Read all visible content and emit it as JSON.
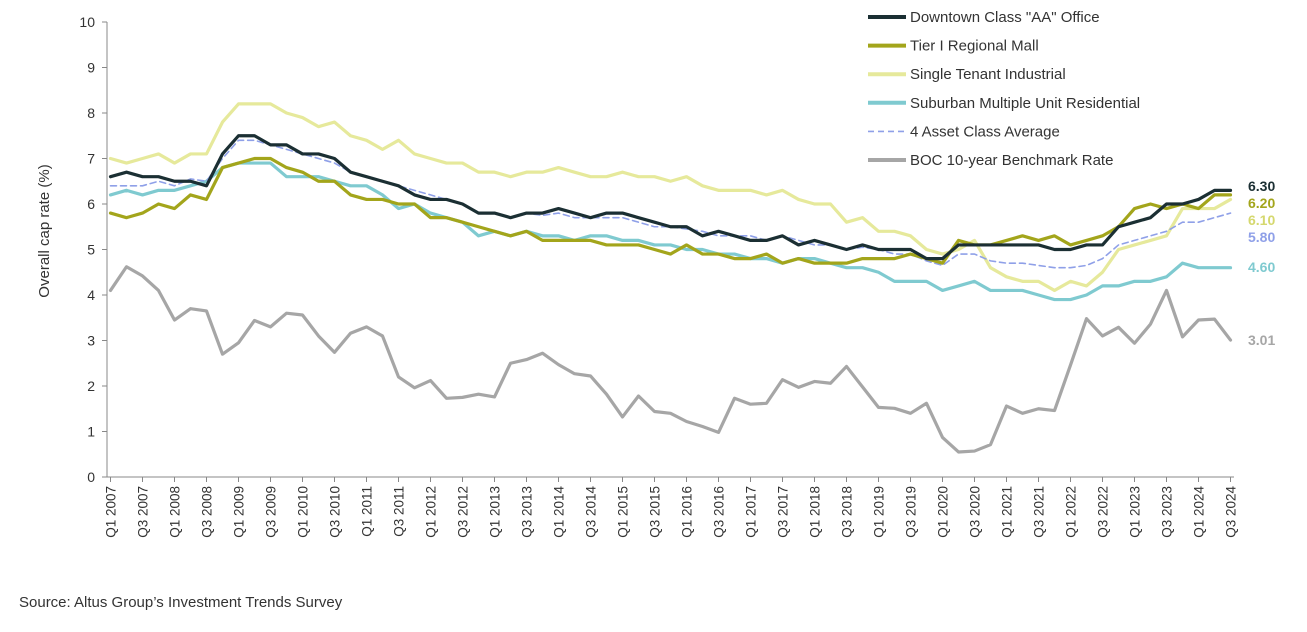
{
  "source_note": "Source:  Altus Group’s Investment Trends Survey",
  "chart_data": {
    "type": "line",
    "title": "",
    "xlabel": "",
    "ylabel": "Overall cap rate (%)",
    "ylim": [
      0,
      10
    ],
    "yticks": [
      "0",
      "1",
      "2",
      "3",
      "4",
      "5",
      "6",
      "7",
      "8",
      "9",
      "10"
    ],
    "x_tick_labels": [
      "Q1 2007",
      "Q3 2007",
      "Q1 2008",
      "Q3 2008",
      "Q1 2009",
      "Q3 2009",
      "Q1 2010",
      "Q3 2010",
      "Q1 2011",
      "Q3 2011",
      "Q1 2012",
      "Q3 2012",
      "Q1 2013",
      "Q3 2013",
      "Q1 2014",
      "Q3 2014",
      "Q1 2015",
      "Q3 2015",
      "Q1 2016",
      "Q3 2016",
      "Q1 2017",
      "Q3 2017",
      "Q1 2018",
      "Q3 2018",
      "Q1 2019",
      "Q3 2019",
      "Q1 2020",
      "Q3 2020",
      "Q1 2021",
      "Q3 2021",
      "Q1 2022",
      "Q3 2022",
      "Q1 2023",
      "Q3 2023",
      "Q1 2024",
      "Q3 2024"
    ],
    "grid": false,
    "legend_position": "top-right",
    "series": [
      {
        "name": "Downtown Class \"AA\" Office",
        "color": "#1b2f33",
        "dash": false,
        "end_label": "6.30",
        "values": [
          6.6,
          6.7,
          6.6,
          6.6,
          6.5,
          6.5,
          6.4,
          7.1,
          7.5,
          7.5,
          7.3,
          7.3,
          7.1,
          7.1,
          7.0,
          6.7,
          6.6,
          6.5,
          6.4,
          6.2,
          6.1,
          6.1,
          6.0,
          5.8,
          5.8,
          5.7,
          5.8,
          5.8,
          5.9,
          5.8,
          5.7,
          5.8,
          5.8,
          5.7,
          5.6,
          5.5,
          5.5,
          5.3,
          5.4,
          5.3,
          5.2,
          5.2,
          5.3,
          5.1,
          5.2,
          5.1,
          5.0,
          5.1,
          5.0,
          5.0,
          5.0,
          4.8,
          4.8,
          5.1,
          5.1,
          5.1,
          5.1,
          5.1,
          5.1,
          5.0,
          5.0,
          5.1,
          5.1,
          5.5,
          5.6,
          5.7,
          6.0,
          6.0,
          6.1,
          6.3,
          6.3
        ]
      },
      {
        "name": "Tier I Regional Mall",
        "color": "#a3a51b",
        "dash": false,
        "end_label": "6.20",
        "values": [
          5.8,
          5.7,
          5.8,
          6.0,
          5.9,
          6.2,
          6.1,
          6.8,
          6.9,
          7.0,
          7.0,
          6.8,
          6.7,
          6.5,
          6.5,
          6.2,
          6.1,
          6.1,
          6.0,
          6.0,
          5.7,
          5.7,
          5.6,
          5.5,
          5.4,
          5.3,
          5.4,
          5.2,
          5.2,
          5.2,
          5.2,
          5.1,
          5.1,
          5.1,
          5.0,
          4.9,
          5.1,
          4.9,
          4.9,
          4.8,
          4.8,
          4.9,
          4.7,
          4.8,
          4.7,
          4.7,
          4.7,
          4.8,
          4.8,
          4.8,
          4.9,
          4.8,
          4.7,
          5.2,
          5.1,
          5.1,
          5.2,
          5.3,
          5.2,
          5.3,
          5.1,
          5.2,
          5.3,
          5.5,
          5.9,
          6.0,
          5.9,
          6.0,
          5.9,
          6.2,
          6.2
        ]
      },
      {
        "name": "Single Tenant Industrial",
        "color": "#e6e99b",
        "dash": false,
        "end_label": "6.10",
        "values": [
          7.0,
          6.9,
          7.0,
          7.1,
          6.9,
          7.1,
          7.1,
          7.8,
          8.2,
          8.2,
          8.2,
          8.0,
          7.9,
          7.7,
          7.8,
          7.5,
          7.4,
          7.2,
          7.4,
          7.1,
          7.0,
          6.9,
          6.9,
          6.7,
          6.7,
          6.6,
          6.7,
          6.7,
          6.8,
          6.7,
          6.6,
          6.6,
          6.7,
          6.6,
          6.6,
          6.5,
          6.6,
          6.4,
          6.3,
          6.3,
          6.3,
          6.2,
          6.3,
          6.1,
          6.0,
          6.0,
          5.6,
          5.7,
          5.4,
          5.4,
          5.3,
          5.0,
          4.9,
          5.0,
          5.2,
          4.6,
          4.4,
          4.3,
          4.3,
          4.1,
          4.3,
          4.2,
          4.5,
          5.0,
          5.1,
          5.2,
          5.3,
          5.9,
          5.9,
          5.9,
          6.1
        ]
      },
      {
        "name": "Suburban Multiple Unit Residential",
        "color": "#7fcad0",
        "dash": false,
        "end_label": "4.60",
        "values": [
          6.2,
          6.3,
          6.2,
          6.3,
          6.3,
          6.4,
          6.5,
          6.8,
          6.9,
          6.9,
          6.9,
          6.6,
          6.6,
          6.6,
          6.5,
          6.4,
          6.4,
          6.2,
          5.9,
          6.0,
          5.8,
          5.7,
          5.6,
          5.3,
          5.4,
          5.3,
          5.4,
          5.3,
          5.3,
          5.2,
          5.3,
          5.3,
          5.2,
          5.2,
          5.1,
          5.1,
          5.0,
          5.0,
          4.9,
          4.9,
          4.8,
          4.8,
          4.7,
          4.8,
          4.8,
          4.7,
          4.6,
          4.6,
          4.5,
          4.3,
          4.3,
          4.3,
          4.1,
          4.2,
          4.3,
          4.1,
          4.1,
          4.1,
          4.0,
          3.9,
          3.9,
          4.0,
          4.2,
          4.2,
          4.3,
          4.3,
          4.4,
          4.7,
          4.6,
          4.6,
          4.6
        ]
      },
      {
        "name": "4 Asset Class Average",
        "color": "#8fa0e8",
        "dash": true,
        "end_label": "5.80",
        "values": [
          6.4,
          6.4,
          6.4,
          6.5,
          6.4,
          6.55,
          6.5,
          7.0,
          7.4,
          7.4,
          7.3,
          7.2,
          7.1,
          7.0,
          6.9,
          6.7,
          6.6,
          6.5,
          6.4,
          6.3,
          6.2,
          6.1,
          6.0,
          5.8,
          5.8,
          5.7,
          5.8,
          5.75,
          5.8,
          5.7,
          5.7,
          5.7,
          5.7,
          5.6,
          5.5,
          5.5,
          5.45,
          5.4,
          5.3,
          5.3,
          5.3,
          5.2,
          5.3,
          5.2,
          5.1,
          5.1,
          5.0,
          5.05,
          5.0,
          4.9,
          4.9,
          4.75,
          4.65,
          4.9,
          4.9,
          4.75,
          4.7,
          4.7,
          4.65,
          4.6,
          4.6,
          4.65,
          4.8,
          5.1,
          5.2,
          5.3,
          5.4,
          5.6,
          5.6,
          5.7,
          5.8
        ]
      },
      {
        "name": "BOC 10-year Benchmark Rate",
        "color": "#a6a6a6",
        "dash": false,
        "end_label": "3.01",
        "values": [
          4.1,
          4.62,
          4.42,
          4.1,
          3.45,
          3.7,
          3.65,
          2.7,
          2.95,
          3.44,
          3.3,
          3.6,
          3.56,
          3.1,
          2.74,
          3.16,
          3.3,
          3.1,
          2.2,
          1.96,
          2.12,
          1.73,
          1.75,
          1.82,
          1.76,
          2.5,
          2.58,
          2.72,
          2.47,
          2.27,
          2.22,
          1.82,
          1.32,
          1.78,
          1.44,
          1.4,
          1.22,
          1.11,
          0.98,
          1.73,
          1.6,
          1.62,
          2.14,
          1.97,
          2.1,
          2.06,
          2.43,
          1.98,
          1.53,
          1.51,
          1.4,
          1.62,
          0.87,
          0.55,
          0.57,
          0.71,
          1.56,
          1.4,
          1.5,
          1.46,
          2.46,
          3.48,
          3.1,
          3.29,
          2.94,
          3.36,
          4.1,
          3.08,
          3.45,
          3.47,
          3.01
        ]
      }
    ]
  }
}
